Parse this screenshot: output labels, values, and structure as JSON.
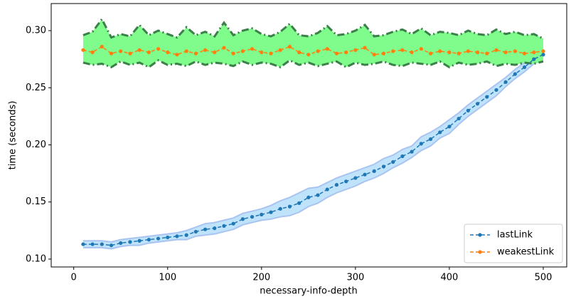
{
  "chart_data": {
    "type": "line",
    "xlabel": "necessary-info-depth",
    "ylabel": "time (seconds)",
    "x": [
      10,
      20,
      30,
      40,
      50,
      60,
      70,
      80,
      90,
      100,
      110,
      120,
      130,
      140,
      150,
      160,
      170,
      180,
      190,
      200,
      210,
      220,
      230,
      240,
      250,
      260,
      270,
      280,
      290,
      300,
      310,
      320,
      330,
      340,
      350,
      360,
      370,
      380,
      390,
      400,
      410,
      420,
      430,
      440,
      450,
      460,
      470,
      480,
      490,
      500
    ],
    "series": [
      {
        "name": "lastLink",
        "color": "#1f77b4",
        "band_color": "#bfe3fb",
        "band_edge_color": "#a9c4f0",
        "values": [
          0.113,
          0.113,
          0.113,
          0.112,
          0.114,
          0.115,
          0.116,
          0.117,
          0.118,
          0.119,
          0.12,
          0.121,
          0.124,
          0.126,
          0.127,
          0.129,
          0.131,
          0.135,
          0.137,
          0.139,
          0.141,
          0.144,
          0.146,
          0.149,
          0.154,
          0.156,
          0.161,
          0.165,
          0.168,
          0.171,
          0.174,
          0.177,
          0.181,
          0.185,
          0.19,
          0.194,
          0.201,
          0.205,
          0.211,
          0.216,
          0.223,
          0.23,
          0.236,
          0.242,
          0.248,
          0.255,
          0.262,
          0.268,
          0.275,
          0.279
        ],
        "lower": [
          0.11,
          0.11,
          0.11,
          0.109,
          0.111,
          0.112,
          0.112,
          0.114,
          0.115,
          0.116,
          0.117,
          0.117,
          0.12,
          0.121,
          0.122,
          0.124,
          0.126,
          0.13,
          0.132,
          0.134,
          0.135,
          0.137,
          0.138,
          0.141,
          0.146,
          0.149,
          0.154,
          0.158,
          0.161,
          0.164,
          0.168,
          0.171,
          0.175,
          0.18,
          0.184,
          0.189,
          0.195,
          0.199,
          0.206,
          0.21,
          0.218,
          0.225,
          0.231,
          0.237,
          0.243,
          0.251,
          0.258,
          0.264,
          0.271,
          0.275
        ],
        "upper": [
          0.116,
          0.116,
          0.116,
          0.115,
          0.117,
          0.118,
          0.119,
          0.12,
          0.121,
          0.122,
          0.123,
          0.125,
          0.128,
          0.131,
          0.132,
          0.134,
          0.136,
          0.14,
          0.142,
          0.144,
          0.147,
          0.151,
          0.154,
          0.158,
          0.162,
          0.163,
          0.167,
          0.171,
          0.174,
          0.177,
          0.18,
          0.183,
          0.188,
          0.191,
          0.196,
          0.199,
          0.207,
          0.211,
          0.216,
          0.222,
          0.228,
          0.235,
          0.241,
          0.247,
          0.253,
          0.259,
          0.266,
          0.272,
          0.279,
          0.283
        ]
      },
      {
        "name": "weakestLink",
        "color": "#ff7f0e",
        "band_color": "#80fc8c",
        "band_edge_color": "#3b8048",
        "values": [
          0.283,
          0.281,
          0.286,
          0.28,
          0.282,
          0.28,
          0.283,
          0.281,
          0.284,
          0.281,
          0.279,
          0.282,
          0.28,
          0.283,
          0.281,
          0.285,
          0.28,
          0.282,
          0.284,
          0.281,
          0.28,
          0.283,
          0.286,
          0.281,
          0.279,
          0.282,
          0.284,
          0.28,
          0.281,
          0.283,
          0.285,
          0.279,
          0.28,
          0.282,
          0.283,
          0.281,
          0.284,
          0.28,
          0.282,
          0.281,
          0.28,
          0.282,
          0.281,
          0.28,
          0.283,
          0.281,
          0.282,
          0.28,
          0.281,
          0.282
        ],
        "lower": [
          0.272,
          0.27,
          0.271,
          0.268,
          0.273,
          0.27,
          0.272,
          0.268,
          0.274,
          0.27,
          0.271,
          0.269,
          0.273,
          0.27,
          0.272,
          0.271,
          0.269,
          0.273,
          0.27,
          0.272,
          0.271,
          0.268,
          0.274,
          0.27,
          0.272,
          0.269,
          0.271,
          0.273,
          0.268,
          0.272,
          0.27,
          0.271,
          0.273,
          0.27,
          0.269,
          0.272,
          0.271,
          0.27,
          0.273,
          0.268,
          0.272,
          0.27,
          0.271,
          0.273,
          0.269,
          0.271,
          0.27,
          0.272,
          0.271,
          0.273
        ],
        "upper": [
          0.296,
          0.299,
          0.31,
          0.294,
          0.297,
          0.295,
          0.305,
          0.296,
          0.3,
          0.297,
          0.294,
          0.303,
          0.296,
          0.299,
          0.295,
          0.307,
          0.296,
          0.3,
          0.302,
          0.297,
          0.295,
          0.299,
          0.306,
          0.296,
          0.295,
          0.298,
          0.304,
          0.296,
          0.297,
          0.3,
          0.305,
          0.295,
          0.296,
          0.299,
          0.301,
          0.297,
          0.302,
          0.296,
          0.299,
          0.298,
          0.296,
          0.3,
          0.297,
          0.296,
          0.301,
          0.297,
          0.299,
          0.296,
          0.297,
          0.293
        ]
      }
    ],
    "xlim": [
      -24,
      525
    ],
    "ylim": [
      0.0931,
      0.3237
    ],
    "xticks": [
      0,
      100,
      200,
      300,
      400,
      500
    ],
    "yticks": [
      {
        "value": 0.1,
        "label": "0.10"
      },
      {
        "value": 0.15,
        "label": "0.15"
      },
      {
        "value": 0.2,
        "label": "0.20"
      },
      {
        "value": 0.25,
        "label": "0.25"
      },
      {
        "value": 0.3,
        "label": "0.30"
      }
    ],
    "legend": "lower right"
  }
}
